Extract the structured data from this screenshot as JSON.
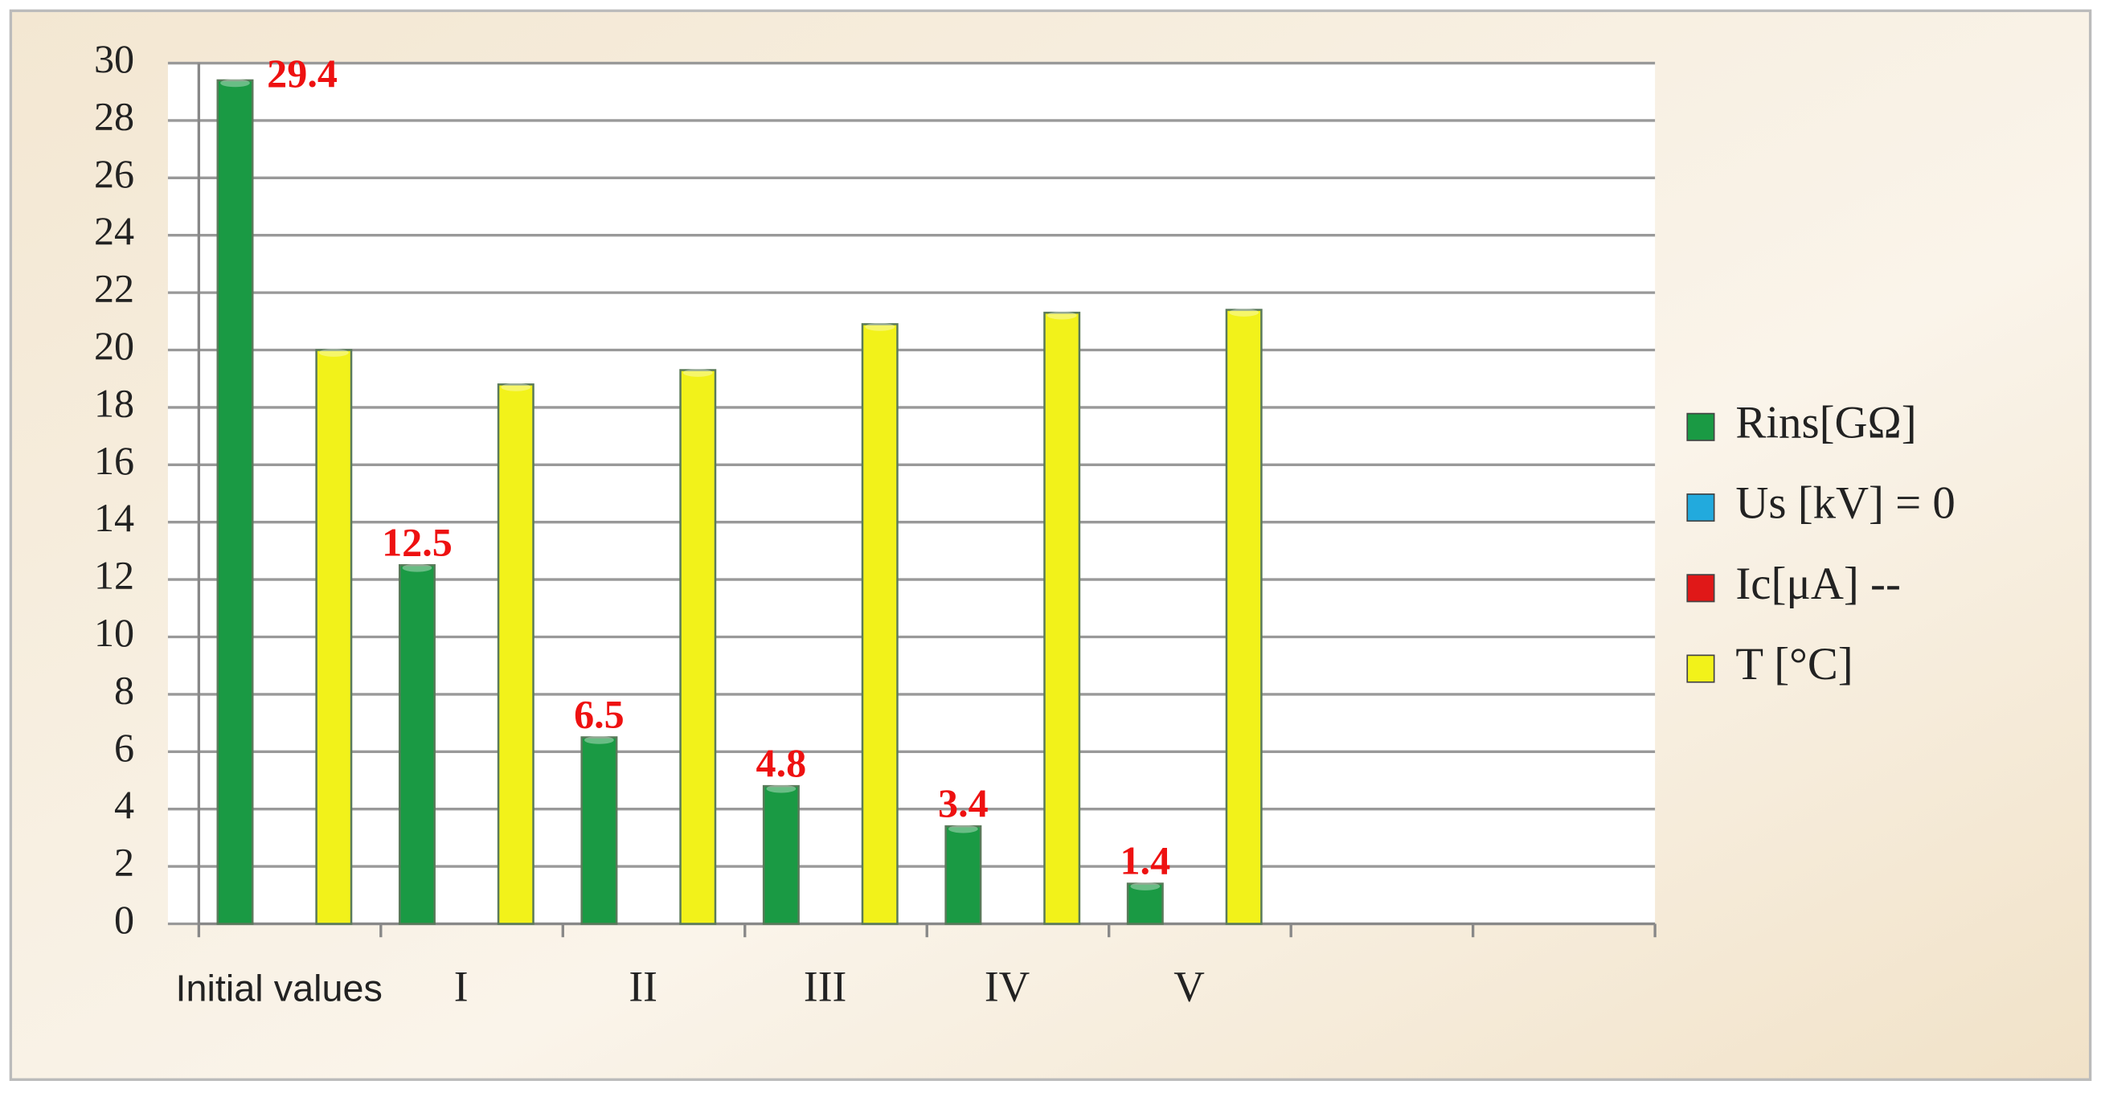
{
  "chart_data": {
    "type": "bar",
    "categories": [
      "Initial values",
      "I",
      "II",
      "III",
      "IV",
      "V",
      null,
      null
    ],
    "series": [
      {
        "name": "Rins[GΩ]",
        "color": "#1a9a44",
        "values": [
          29.4,
          12.5,
          6.5,
          4.8,
          3.4,
          1.4,
          null,
          null
        ],
        "data_labels": true
      },
      {
        "name": "Us [kV] = 0",
        "color": "#22aadd",
        "values": [
          null,
          null,
          null,
          null,
          null,
          null,
          null,
          null
        ],
        "data_labels": false
      },
      {
        "name": "Ic[μA]  --",
        "color": "#e01818",
        "values": [
          null,
          null,
          null,
          null,
          null,
          null,
          null,
          null
        ],
        "data_labels": false
      },
      {
        "name": "T [°C]",
        "color": "#f2f21a",
        "values": [
          20.0,
          18.8,
          19.3,
          20.9,
          21.3,
          21.4,
          null,
          null
        ],
        "data_labels": false
      }
    ],
    "ylim": [
      0,
      30
    ],
    "yticks": [
      0,
      2,
      4,
      6,
      8,
      10,
      12,
      14,
      16,
      18,
      20,
      22,
      24,
      26,
      28,
      30
    ],
    "grid": true,
    "legend": "right"
  }
}
